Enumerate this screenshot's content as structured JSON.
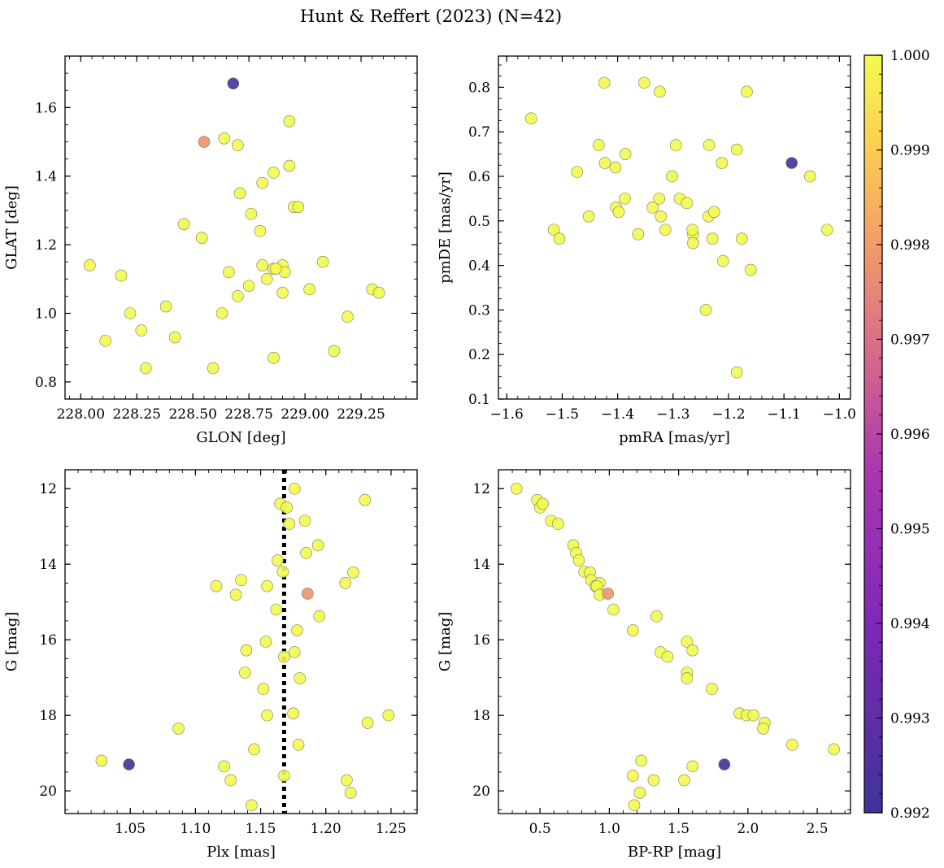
{
  "chart_data": {
    "title": "Hunt & Reffert (2023) (N=42)",
    "colorbar": {
      "min": 0.992,
      "max": 1.0,
      "ticks": [
        0.992,
        0.993,
        0.994,
        0.995,
        0.996,
        0.997,
        0.998,
        0.999,
        1.0
      ],
      "tick_labels": [
        "0.992",
        "0.993",
        "0.994",
        "0.995",
        "0.996",
        "0.997",
        "0.998",
        "0.999",
        "1.000"
      ],
      "colormap": "plasma"
    },
    "panels": [
      {
        "type": "scatter",
        "xlabel": "GLON [deg]",
        "ylabel": "GLAT [deg]",
        "xlim": [
          227.93,
          229.5
        ],
        "ylim": [
          0.75,
          1.75
        ],
        "invert_y": false,
        "xticks": [
          228.0,
          228.25,
          228.5,
          228.75,
          229.0,
          229.25
        ],
        "xtick_labels": [
          "228.00",
          "228.25",
          "228.50",
          "228.75",
          "229.00",
          "229.25"
        ],
        "yticks": [
          0.8,
          1.0,
          1.2,
          1.4,
          1.6
        ],
        "ytick_labels": [
          "0.8",
          "1.0",
          "1.2",
          "1.4",
          "1.6"
        ],
        "vline": null,
        "points": [
          {
            "x": 228.04,
            "y": 1.14,
            "c": 1.0
          },
          {
            "x": 228.11,
            "y": 0.92,
            "c": 1.0
          },
          {
            "x": 228.18,
            "y": 1.11,
            "c": 1.0
          },
          {
            "x": 228.22,
            "y": 1.0,
            "c": 1.0
          },
          {
            "x": 228.27,
            "y": 0.95,
            "c": 1.0
          },
          {
            "x": 228.29,
            "y": 0.84,
            "c": 1.0
          },
          {
            "x": 228.38,
            "y": 1.02,
            "c": 1.0
          },
          {
            "x": 228.42,
            "y": 0.93,
            "c": 1.0
          },
          {
            "x": 228.46,
            "y": 1.26,
            "c": 1.0
          },
          {
            "x": 228.54,
            "y": 1.22,
            "c": 1.0
          },
          {
            "x": 228.55,
            "y": 1.5,
            "c": 0.9978
          },
          {
            "x": 228.59,
            "y": 0.84,
            "c": 1.0
          },
          {
            "x": 228.63,
            "y": 1.0,
            "c": 1.0
          },
          {
            "x": 228.64,
            "y": 1.51,
            "c": 1.0
          },
          {
            "x": 228.66,
            "y": 1.12,
            "c": 1.0
          },
          {
            "x": 228.68,
            "y": 1.67,
            "c": 0.992
          },
          {
            "x": 228.7,
            "y": 1.49,
            "c": 1.0
          },
          {
            "x": 228.71,
            "y": 1.35,
            "c": 1.0
          },
          {
            "x": 228.7,
            "y": 1.05,
            "c": 1.0
          },
          {
            "x": 228.75,
            "y": 1.08,
            "c": 1.0
          },
          {
            "x": 228.76,
            "y": 1.29,
            "c": 1.0
          },
          {
            "x": 228.8,
            "y": 1.24,
            "c": 1.0
          },
          {
            "x": 228.81,
            "y": 1.38,
            "c": 1.0
          },
          {
            "x": 228.81,
            "y": 1.14,
            "c": 1.0
          },
          {
            "x": 228.83,
            "y": 1.1,
            "c": 1.0
          },
          {
            "x": 228.86,
            "y": 1.13,
            "c": 1.0
          },
          {
            "x": 228.86,
            "y": 1.41,
            "c": 1.0
          },
          {
            "x": 228.86,
            "y": 0.87,
            "c": 1.0
          },
          {
            "x": 228.9,
            "y": 1.14,
            "c": 1.0
          },
          {
            "x": 228.9,
            "y": 1.06,
            "c": 1.0
          },
          {
            "x": 228.91,
            "y": 1.12,
            "c": 1.0
          },
          {
            "x": 228.93,
            "y": 1.43,
            "c": 1.0
          },
          {
            "x": 228.93,
            "y": 1.56,
            "c": 1.0
          },
          {
            "x": 228.95,
            "y": 1.31,
            "c": 1.0
          },
          {
            "x": 228.97,
            "y": 1.31,
            "c": 1.0
          },
          {
            "x": 229.02,
            "y": 1.07,
            "c": 1.0
          },
          {
            "x": 229.08,
            "y": 1.15,
            "c": 1.0
          },
          {
            "x": 229.13,
            "y": 0.89,
            "c": 1.0
          },
          {
            "x": 229.19,
            "y": 0.99,
            "c": 1.0
          },
          {
            "x": 229.3,
            "y": 1.07,
            "c": 1.0
          },
          {
            "x": 229.33,
            "y": 1.06,
            "c": 1.0
          },
          {
            "x": 228.87,
            "y": 1.13,
            "c": 1.0
          }
        ]
      },
      {
        "type": "scatter",
        "xlabel": "pmRA [mas/yr]",
        "ylabel": "pmDE [mas/yr]",
        "xlim": [
          -1.615,
          -0.98
        ],
        "ylim": [
          0.1,
          0.87
        ],
        "invert_y": false,
        "xticks": [
          -1.6,
          -1.5,
          -1.4,
          -1.3,
          -1.2,
          -1.1,
          -1.0
        ],
        "xtick_labels": [
          "−1.6",
          "−1.5",
          "−1.4",
          "−1.3",
          "−1.2",
          "−1.1",
          "−1.0"
        ],
        "yticks": [
          0.1,
          0.2,
          0.3,
          0.4,
          0.5,
          0.6,
          0.7,
          0.8
        ],
        "ytick_labels": [
          "0.1",
          "0.2",
          "0.3",
          "0.4",
          "0.5",
          "0.6",
          "0.7",
          "0.8"
        ],
        "vline": null,
        "points": [
          {
            "x": -1.556,
            "y": 0.73,
            "c": 1.0
          },
          {
            "x": -1.515,
            "y": 0.48,
            "c": 1.0
          },
          {
            "x": -1.505,
            "y": 0.46,
            "c": 1.0
          },
          {
            "x": -1.473,
            "y": 0.61,
            "c": 1.0
          },
          {
            "x": -1.452,
            "y": 0.51,
            "c": 1.0
          },
          {
            "x": -1.434,
            "y": 0.67,
            "c": 1.0
          },
          {
            "x": -1.424,
            "y": 0.81,
            "c": 1.0
          },
          {
            "x": -1.423,
            "y": 0.63,
            "c": 1.0
          },
          {
            "x": -1.404,
            "y": 0.62,
            "c": 1.0
          },
          {
            "x": -1.403,
            "y": 0.53,
            "c": 1.0
          },
          {
            "x": -1.398,
            "y": 0.52,
            "c": 1.0
          },
          {
            "x": -1.387,
            "y": 0.55,
            "c": 1.0
          },
          {
            "x": -1.386,
            "y": 0.65,
            "c": 1.0
          },
          {
            "x": -1.363,
            "y": 0.47,
            "c": 1.0
          },
          {
            "x": -1.352,
            "y": 0.81,
            "c": 1.0
          },
          {
            "x": -1.337,
            "y": 0.53,
            "c": 1.0
          },
          {
            "x": -1.325,
            "y": 0.55,
            "c": 1.0
          },
          {
            "x": -1.324,
            "y": 0.79,
            "c": 1.0
          },
          {
            "x": -1.322,
            "y": 0.51,
            "c": 1.0
          },
          {
            "x": -1.314,
            "y": 0.48,
            "c": 1.0
          },
          {
            "x": -1.302,
            "y": 0.6,
            "c": 1.0
          },
          {
            "x": -1.295,
            "y": 0.67,
            "c": 1.0
          },
          {
            "x": -1.288,
            "y": 0.55,
            "c": 1.0
          },
          {
            "x": -1.275,
            "y": 0.54,
            "c": 1.0
          },
          {
            "x": -1.264,
            "y": 0.47,
            "c": 1.0
          },
          {
            "x": -1.264,
            "y": 0.45,
            "c": 1.0
          },
          {
            "x": -1.241,
            "y": 0.3,
            "c": 1.0
          },
          {
            "x": -1.236,
            "y": 0.51,
            "c": 1.0
          },
          {
            "x": -1.235,
            "y": 0.67,
            "c": 1.0
          },
          {
            "x": -1.229,
            "y": 0.46,
            "c": 1.0
          },
          {
            "x": -1.226,
            "y": 0.52,
            "c": 1.0
          },
          {
            "x": -1.212,
            "y": 0.63,
            "c": 1.0
          },
          {
            "x": -1.21,
            "y": 0.41,
            "c": 1.0
          },
          {
            "x": -1.185,
            "y": 0.66,
            "c": 1.0
          },
          {
            "x": -1.185,
            "y": 0.16,
            "c": 1.0
          },
          {
            "x": -1.176,
            "y": 0.46,
            "c": 1.0
          },
          {
            "x": -1.167,
            "y": 0.79,
            "c": 1.0
          },
          {
            "x": -1.16,
            "y": 0.39,
            "c": 1.0
          },
          {
            "x": -1.086,
            "y": 0.63,
            "c": 0.992
          },
          {
            "x": -1.053,
            "y": 0.6,
            "c": 1.0
          },
          {
            "x": -1.022,
            "y": 0.48,
            "c": 1.0
          },
          {
            "x": -1.265,
            "y": 0.48,
            "c": 1.0
          }
        ]
      },
      {
        "type": "scatter",
        "xlabel": "Plx [mas]",
        "ylabel": "G [mag]",
        "xlim": [
          1.0,
          1.27
        ],
        "ylim": [
          11.5,
          20.6
        ],
        "invert_y": true,
        "xticks": [
          1.05,
          1.1,
          1.15,
          1.2,
          1.25
        ],
        "xtick_labels": [
          "1.05",
          "1.10",
          "1.15",
          "1.20",
          "1.25"
        ],
        "yticks": [
          12,
          14,
          16,
          18,
          20
        ],
        "ytick_labels": [
          "12",
          "14",
          "16",
          "18",
          "20"
        ],
        "vline": 1.168,
        "points": [
          {
            "x": 1.028,
            "y": 19.2,
            "c": 1.0
          },
          {
            "x": 1.049,
            "y": 19.3,
            "c": 0.992
          },
          {
            "x": 1.087,
            "y": 18.35,
            "c": 1.0
          },
          {
            "x": 1.116,
            "y": 14.58,
            "c": 1.0
          },
          {
            "x": 1.122,
            "y": 19.35,
            "c": 1.0
          },
          {
            "x": 1.127,
            "y": 19.72,
            "c": 1.0
          },
          {
            "x": 1.131,
            "y": 14.81,
            "c": 1.0
          },
          {
            "x": 1.135,
            "y": 14.42,
            "c": 1.0
          },
          {
            "x": 1.138,
            "y": 16.87,
            "c": 1.0
          },
          {
            "x": 1.139,
            "y": 16.28,
            "c": 1.0
          },
          {
            "x": 1.143,
            "y": 20.38,
            "c": 1.0
          },
          {
            "x": 1.145,
            "y": 18.9,
            "c": 1.0
          },
          {
            "x": 1.152,
            "y": 17.3,
            "c": 1.0
          },
          {
            "x": 1.154,
            "y": 16.05,
            "c": 1.0
          },
          {
            "x": 1.155,
            "y": 14.58,
            "c": 1.0
          },
          {
            "x": 1.155,
            "y": 18.0,
            "c": 1.0
          },
          {
            "x": 1.162,
            "y": 15.2,
            "c": 1.0
          },
          {
            "x": 1.163,
            "y": 13.9,
            "c": 1.0
          },
          {
            "x": 1.165,
            "y": 12.4,
            "c": 1.0
          },
          {
            "x": 1.167,
            "y": 14.2,
            "c": 1.0
          },
          {
            "x": 1.168,
            "y": 16.45,
            "c": 1.0
          },
          {
            "x": 1.168,
            "y": 19.6,
            "c": 1.0
          },
          {
            "x": 1.17,
            "y": 12.5,
            "c": 1.0
          },
          {
            "x": 1.172,
            "y": 12.93,
            "c": 1.0
          },
          {
            "x": 1.175,
            "y": 17.95,
            "c": 1.0
          },
          {
            "x": 1.176,
            "y": 12.0,
            "c": 1.0
          },
          {
            "x": 1.176,
            "y": 16.33,
            "c": 1.0
          },
          {
            "x": 1.178,
            "y": 15.75,
            "c": 1.0
          },
          {
            "x": 1.179,
            "y": 18.78,
            "c": 1.0
          },
          {
            "x": 1.18,
            "y": 17.02,
            "c": 1.0
          },
          {
            "x": 1.184,
            "y": 12.85,
            "c": 1.0
          },
          {
            "x": 1.186,
            "y": 14.78,
            "c": 0.9978
          },
          {
            "x": 1.185,
            "y": 13.7,
            "c": 1.0
          },
          {
            "x": 1.194,
            "y": 13.5,
            "c": 1.0
          },
          {
            "x": 1.195,
            "y": 15.38,
            "c": 1.0
          },
          {
            "x": 1.215,
            "y": 14.5,
            "c": 1.0
          },
          {
            "x": 1.216,
            "y": 19.72,
            "c": 1.0
          },
          {
            "x": 1.219,
            "y": 20.05,
            "c": 1.0
          },
          {
            "x": 1.221,
            "y": 14.22,
            "c": 1.0
          },
          {
            "x": 1.23,
            "y": 12.3,
            "c": 1.0
          },
          {
            "x": 1.232,
            "y": 18.2,
            "c": 1.0
          },
          {
            "x": 1.248,
            "y": 18.0,
            "c": 1.0
          }
        ]
      },
      {
        "type": "scatter",
        "xlabel": "BP-RP [mag]",
        "ylabel": "G [mag]",
        "xlim": [
          0.2,
          2.74
        ],
        "ylim": [
          11.5,
          20.6
        ],
        "invert_y": true,
        "xticks": [
          0.5,
          1.0,
          1.5,
          2.0,
          2.5
        ],
        "xtick_labels": [
          "0.5",
          "1.0",
          "1.5",
          "2.0",
          "2.5"
        ],
        "yticks": [
          12,
          14,
          16,
          18,
          20
        ],
        "ytick_labels": [
          "12",
          "14",
          "16",
          "18",
          "20"
        ],
        "vline": null,
        "points": [
          {
            "x": 0.33,
            "y": 12.0,
            "c": 1.0
          },
          {
            "x": 0.48,
            "y": 12.3,
            "c": 1.0
          },
          {
            "x": 0.5,
            "y": 12.5,
            "c": 1.0
          },
          {
            "x": 0.52,
            "y": 12.4,
            "c": 1.0
          },
          {
            "x": 0.58,
            "y": 12.85,
            "c": 1.0
          },
          {
            "x": 0.63,
            "y": 12.93,
            "c": 1.0
          },
          {
            "x": 0.74,
            "y": 13.5,
            "c": 1.0
          },
          {
            "x": 0.76,
            "y": 13.7,
            "c": 1.0
          },
          {
            "x": 0.78,
            "y": 13.9,
            "c": 1.0
          },
          {
            "x": 0.82,
            "y": 14.2,
            "c": 1.0
          },
          {
            "x": 0.86,
            "y": 14.22,
            "c": 1.0
          },
          {
            "x": 0.87,
            "y": 14.42,
            "c": 1.0
          },
          {
            "x": 0.9,
            "y": 14.58,
            "c": 1.0
          },
          {
            "x": 0.93,
            "y": 14.5,
            "c": 1.0
          },
          {
            "x": 0.91,
            "y": 14.58,
            "c": 1.0
          },
          {
            "x": 0.93,
            "y": 14.81,
            "c": 1.0
          },
          {
            "x": 0.99,
            "y": 14.78,
            "c": 0.9978
          },
          {
            "x": 1.03,
            "y": 15.2,
            "c": 1.0
          },
          {
            "x": 1.17,
            "y": 15.75,
            "c": 1.0
          },
          {
            "x": 1.34,
            "y": 15.38,
            "c": 1.0
          },
          {
            "x": 1.37,
            "y": 16.33,
            "c": 1.0
          },
          {
            "x": 1.42,
            "y": 16.45,
            "c": 1.0
          },
          {
            "x": 1.56,
            "y": 16.05,
            "c": 1.0
          },
          {
            "x": 1.56,
            "y": 16.87,
            "c": 1.0
          },
          {
            "x": 1.56,
            "y": 17.02,
            "c": 1.0
          },
          {
            "x": 1.6,
            "y": 16.28,
            "c": 1.0
          },
          {
            "x": 1.74,
            "y": 17.3,
            "c": 1.0
          },
          {
            "x": 1.94,
            "y": 17.95,
            "c": 1.0
          },
          {
            "x": 1.99,
            "y": 18.0,
            "c": 1.0
          },
          {
            "x": 2.04,
            "y": 18.0,
            "c": 1.0
          },
          {
            "x": 2.12,
            "y": 18.2,
            "c": 1.0
          },
          {
            "x": 2.11,
            "y": 18.35,
            "c": 1.0
          },
          {
            "x": 2.32,
            "y": 18.78,
            "c": 1.0
          },
          {
            "x": 2.62,
            "y": 18.9,
            "c": 1.0
          },
          {
            "x": 1.23,
            "y": 19.2,
            "c": 1.0
          },
          {
            "x": 1.83,
            "y": 19.3,
            "c": 0.992
          },
          {
            "x": 1.6,
            "y": 19.35,
            "c": 1.0
          },
          {
            "x": 1.17,
            "y": 19.6,
            "c": 1.0
          },
          {
            "x": 1.32,
            "y": 19.72,
            "c": 1.0
          },
          {
            "x": 1.54,
            "y": 19.72,
            "c": 1.0
          },
          {
            "x": 1.22,
            "y": 20.05,
            "c": 1.0
          },
          {
            "x": 1.18,
            "y": 20.38,
            "c": 1.0
          }
        ]
      }
    ]
  }
}
